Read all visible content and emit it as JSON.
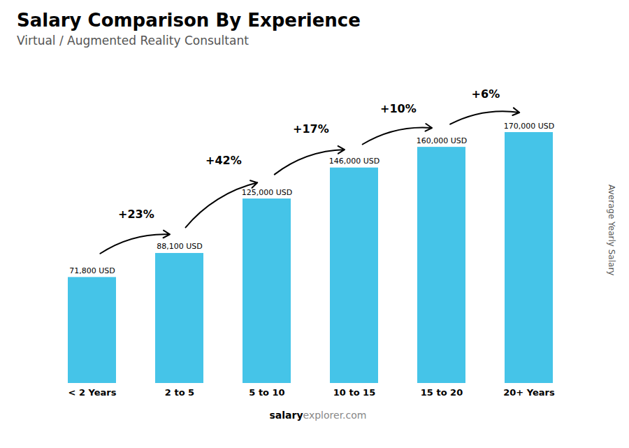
{
  "chart_data": {
    "type": "bar",
    "title": "Salary Comparison By Experience",
    "subtitle": "Virtual / Augmented Reality Consultant",
    "ylabel": "Average Yearly Salary",
    "caption": [
      "salary",
      "explorer.com"
    ],
    "categories": [
      "< 2 Years",
      "2 to 5",
      "5 to 10",
      "10 to 15",
      "15 to 20",
      "20+ Years"
    ],
    "values": [
      71800,
      88100,
      125000,
      146000,
      160000,
      170000
    ],
    "value_labels": [
      "71,800 USD",
      "88,100 USD",
      "125,000 USD",
      "146,000 USD",
      "160,000 USD",
      "170,000 USD"
    ],
    "annotations": [
      "+23%",
      "+42%",
      "+17%",
      "+10%",
      "+6%"
    ],
    "color": "#45c4e8",
    "ylim": [
      0,
      215000
    ],
    "tick_labels": "x",
    "grid": false,
    "data_labels": true
  }
}
